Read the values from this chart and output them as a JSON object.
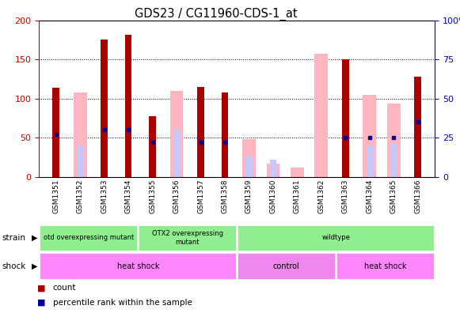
{
  "title": "GDS23 / CG11960-CDS-1_at",
  "samples": [
    "GSM1351",
    "GSM1352",
    "GSM1353",
    "GSM1354",
    "GSM1355",
    "GSM1356",
    "GSM1357",
    "GSM1358",
    "GSM1359",
    "GSM1360",
    "GSM1361",
    "GSM1362",
    "GSM1363",
    "GSM1364",
    "GSM1365",
    "GSM1366"
  ],
  "count_values": [
    114,
    0,
    175,
    182,
    78,
    0,
    115,
    108,
    0,
    0,
    0,
    0,
    150,
    0,
    0,
    128
  ],
  "rank_values": [
    27,
    0,
    30,
    30,
    22,
    0,
    22,
    22,
    0,
    0,
    0,
    0,
    25,
    25,
    25,
    35
  ],
  "absent_count": [
    0,
    108,
    0,
    0,
    0,
    110,
    0,
    0,
    48,
    17,
    12,
    157,
    0,
    105,
    94,
    0
  ],
  "absent_rank_pct": [
    0,
    20,
    0,
    0,
    0,
    30,
    0,
    0,
    13,
    11,
    0,
    0,
    0,
    20,
    21,
    0
  ],
  "ylim_left": [
    0,
    200
  ],
  "ylim_right": [
    0,
    100
  ],
  "yticks_left": [
    0,
    50,
    100,
    150,
    200
  ],
  "yticks_right": [
    0,
    25,
    50,
    75,
    100
  ],
  "count_color": "#AA0000",
  "rank_color": "#000099",
  "absent_count_color": "#FFB6C1",
  "absent_rank_color": "#C8C8FF",
  "bg_color": "#FFFFFF",
  "left_ycolor": "#CC0000",
  "right_ycolor": "#0000CC",
  "strain_groups": [
    {
      "label": "otd overexpressing mutant",
      "start": 0,
      "end": 4
    },
    {
      "label": "OTX2 overexpressing\nmutant",
      "start": 4,
      "end": 8
    },
    {
      "label": "wildtype",
      "start": 8,
      "end": 16
    }
  ],
  "shock_groups": [
    {
      "label": "heat shock",
      "start": 0,
      "end": 8,
      "color": "#FF88FF"
    },
    {
      "label": "control",
      "start": 8,
      "end": 12,
      "color": "#EE88EE"
    },
    {
      "label": "heat shock",
      "start": 12,
      "end": 16,
      "color": "#FF88FF"
    }
  ]
}
